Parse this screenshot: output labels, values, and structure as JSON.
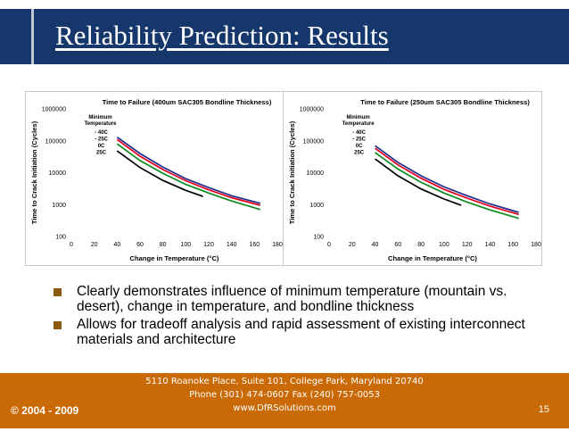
{
  "slide": {
    "title": "Reliability Prediction: Results",
    "bullets": [
      "Clearly demonstrates influence of minimum temperature (mountain vs. desert), change in temperature, and bondline thickness",
      "Allows for tradeoff analysis and rapid assessment of existing interconnect materials and architecture"
    ],
    "footer": {
      "address": "5110 Roanoke Place, Suite 101, College Park, Maryland 20740",
      "phone": "Phone (301) 474-0607  Fax (240) 757-0053",
      "web": "www.DfRSolutions.com",
      "copyright": "© 2004 - 2009",
      "page": "15"
    },
    "colors": {
      "title_bar": "#16376b",
      "footer_bar": "#c96a06",
      "bullet": "#8a5a12"
    }
  },
  "chart_data": [
    {
      "type": "line",
      "title": "Time to Failure (400um SAC305 Bondline Thickness)",
      "xlabel": "Change in Temperature (°C)",
      "ylabel": "Time to Crack Initiation (Cycles)",
      "xlim": [
        0,
        180
      ],
      "x_ticks": [
        0,
        20,
        40,
        60,
        80,
        100,
        120,
        140,
        160,
        180
      ],
      "ylim": [
        100,
        1000000
      ],
      "y_scale": "log",
      "y_ticks": [
        100,
        1000,
        10000,
        100000,
        1000000
      ],
      "y_tick_labels": [
        "100",
        "1000",
        "10000",
        "100000",
        "1000000"
      ],
      "legend_title": [
        "Minimum",
        "Temperature"
      ],
      "legend_position": "top-left",
      "series": [
        {
          "name": "- 40C",
          "color": "#1f2d8c",
          "x": [
            40,
            60,
            80,
            100,
            120,
            140,
            165
          ],
          "y": [
            130000,
            40000,
            15000,
            6500,
            3400,
            1900,
            1100
          ]
        },
        {
          "name": "- 25C",
          "color": "#e0001b",
          "x": [
            40,
            60,
            80,
            100,
            120,
            140,
            165
          ],
          "y": [
            110000,
            33000,
            12500,
            5600,
            2900,
            1650,
            950
          ]
        },
        {
          "name": "0C",
          "color": "#0a8a1e",
          "x": [
            40,
            60,
            80,
            100,
            120,
            140,
            165
          ],
          "y": [
            80000,
            24000,
            9500,
            4300,
            2300,
            1300,
            700
          ]
        },
        {
          "name": "25C",
          "color": "#000000",
          "x": [
            40,
            60,
            80,
            100,
            115
          ],
          "y": [
            48000,
            14500,
            5700,
            2800,
            1800
          ]
        }
      ]
    },
    {
      "type": "line",
      "title": "Time to Failure (250um SAC305 Bondline Thickness)",
      "xlabel": "Change in Temperature (°C)",
      "ylabel": "Time to Crack Initiation (Cycles)",
      "xlim": [
        0,
        180
      ],
      "x_ticks": [
        0,
        20,
        40,
        60,
        80,
        100,
        120,
        140,
        160,
        180
      ],
      "ylim": [
        100,
        1000000
      ],
      "y_scale": "log",
      "y_ticks": [
        100,
        1000,
        10000,
        100000,
        1000000
      ],
      "y_tick_labels": [
        "100",
        "1000",
        "10000",
        "100000",
        "1000000"
      ],
      "legend_title": [
        "Minimum",
        "Temperature"
      ],
      "legend_position": "top-left",
      "series": [
        {
          "name": "- 40C",
          "color": "#1f2d8c",
          "x": [
            40,
            60,
            80,
            100,
            120,
            140,
            165
          ],
          "y": [
            70000,
            21000,
            8000,
            3600,
            1900,
            1050,
            570
          ]
        },
        {
          "name": "- 25C",
          "color": "#e0001b",
          "x": [
            40,
            60,
            80,
            100,
            120,
            140,
            165
          ],
          "y": [
            58000,
            17500,
            6700,
            3000,
            1600,
            900,
            490
          ]
        },
        {
          "name": "0C",
          "color": "#0a8a1e",
          "x": [
            40,
            60,
            80,
            100,
            120,
            140,
            165
          ],
          "y": [
            43000,
            13000,
            5000,
            2300,
            1200,
            680,
            370
          ]
        },
        {
          "name": "25C",
          "color": "#000000",
          "x": [
            40,
            60,
            80,
            100,
            115
          ],
          "y": [
            27000,
            8000,
            3100,
            1500,
            950
          ]
        }
      ]
    }
  ]
}
